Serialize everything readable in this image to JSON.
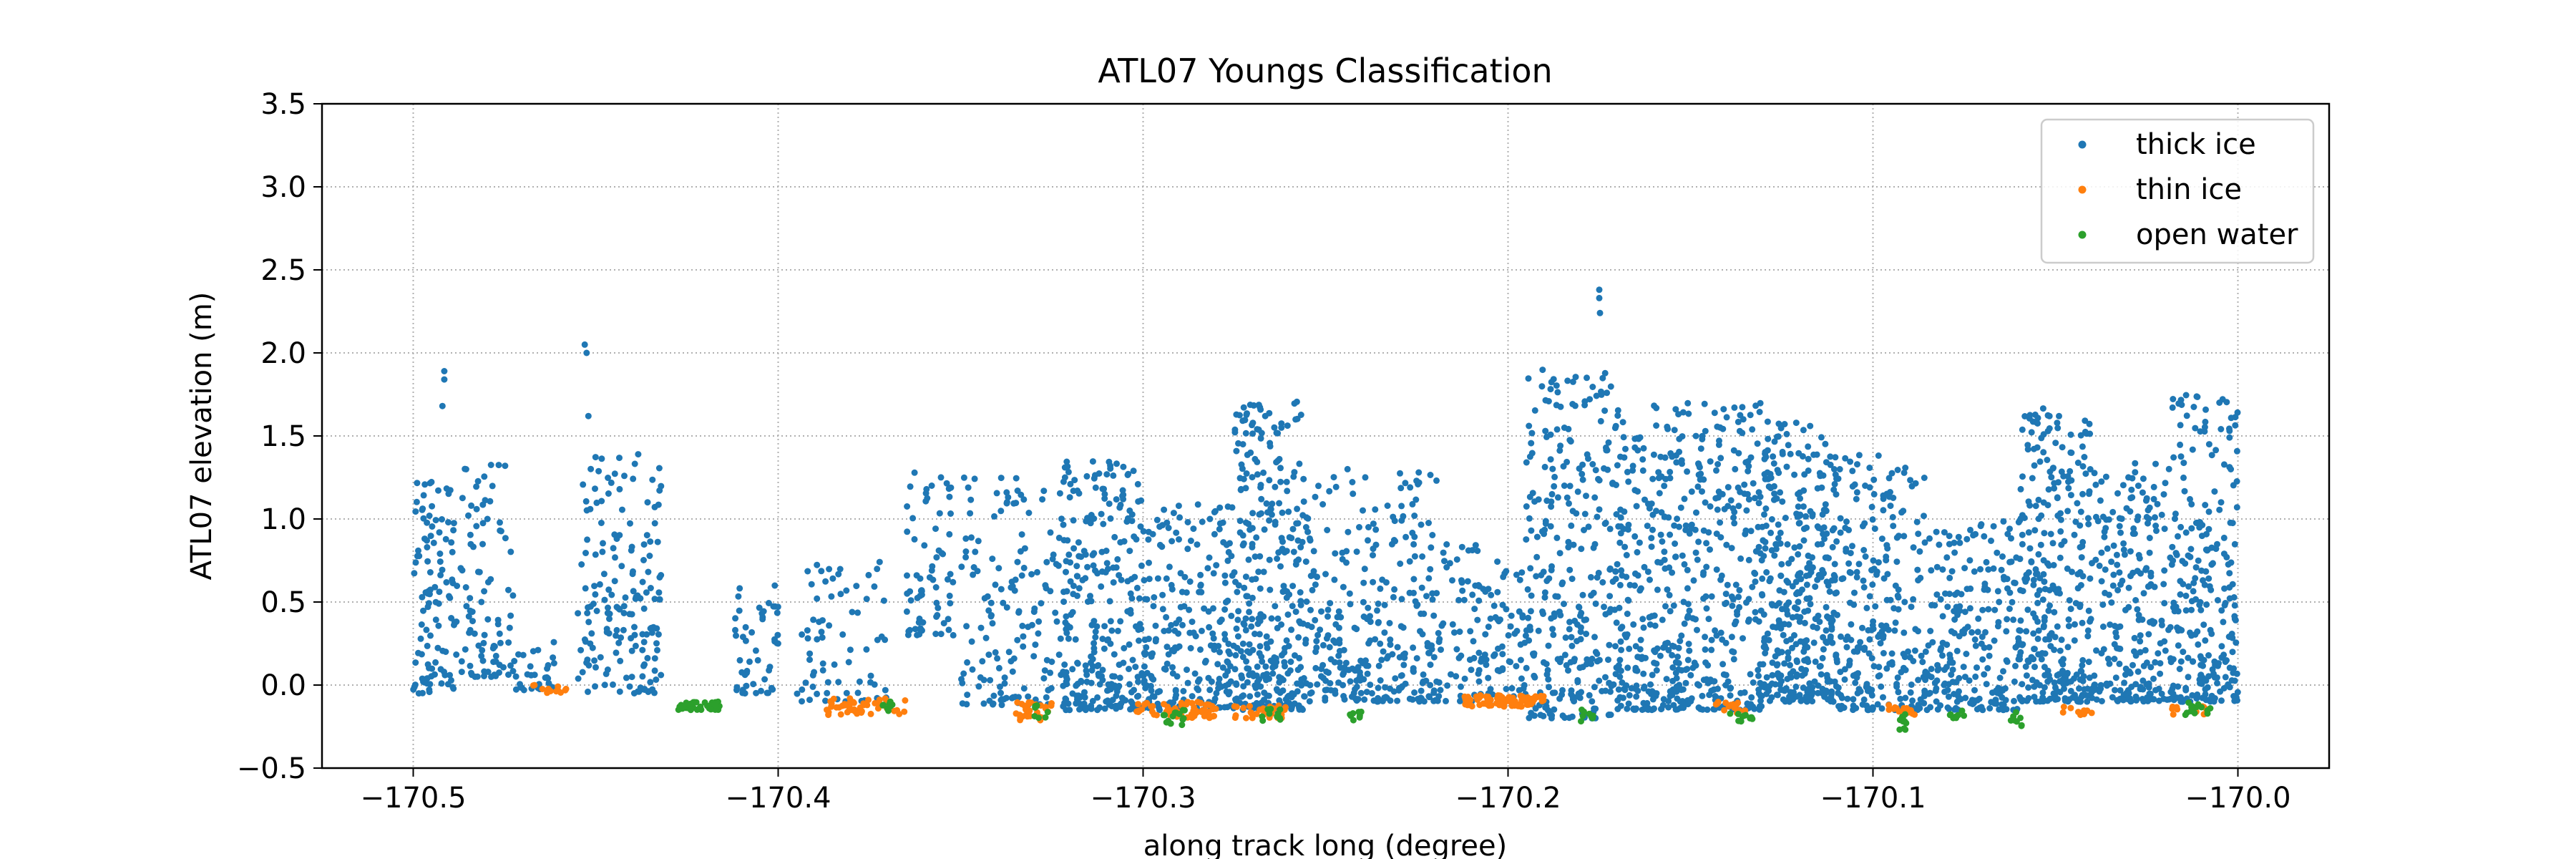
{
  "chart_data": {
    "type": "scatter",
    "title": "ATL07 Youngs Classification",
    "xlabel": "along track long (degree)",
    "ylabel": "ATL07 elevation (m)",
    "xlim": [
      -170.525,
      -169.975
    ],
    "ylim": [
      -0.5,
      3.5
    ],
    "xticks": [
      -170.5,
      -170.4,
      -170.3,
      -170.2,
      -170.1,
      -170.0
    ],
    "xtick_labels": [
      "−170.5",
      "−170.4",
      "−170.3",
      "−170.2",
      "−170.1",
      "−170.0"
    ],
    "yticks": [
      -0.5,
      0.0,
      0.5,
      1.0,
      1.5,
      2.0,
      2.5,
      3.0,
      3.5
    ],
    "ytick_labels": [
      "−0.5",
      "0.0",
      "0.5",
      "1.0",
      "1.5",
      "2.0",
      "2.5",
      "3.0",
      "3.5"
    ],
    "grid": true,
    "legend_position": "top-right",
    "series": [
      {
        "name": "thick ice",
        "color": "#1f77b4",
        "ice_groups": [
          {
            "x0": -170.5,
            "x1": -170.488,
            "lo": -0.05,
            "hi": 1.25,
            "n": 110
          },
          {
            "x0": -170.487,
            "x1": -170.472,
            "lo": 0.05,
            "hi": 1.35,
            "n": 90
          },
          {
            "x0": -170.472,
            "x1": -170.46,
            "lo": -0.03,
            "hi": 0.3,
            "n": 30
          },
          {
            "x0": -170.455,
            "x1": -170.432,
            "lo": -0.05,
            "hi": 1.4,
            "n": 170
          },
          {
            "x0": -170.412,
            "x1": -170.4,
            "lo": -0.05,
            "hi": 0.6,
            "n": 50
          },
          {
            "x0": -170.395,
            "x1": -170.37,
            "lo": -0.1,
            "hi": 0.75,
            "n": 70
          },
          {
            "x0": -170.365,
            "x1": -170.352,
            "lo": 0.3,
            "hi": 1.3,
            "n": 70
          },
          {
            "x0": -170.35,
            "x1": -170.322,
            "lo": -0.12,
            "hi": 1.25,
            "n": 150
          },
          {
            "x0": -170.322,
            "x1": -170.298,
            "lo": -0.15,
            "hi": 1.35,
            "n": 300
          },
          {
            "x0": -170.298,
            "x1": -170.275,
            "lo": -0.15,
            "hi": 1.1,
            "n": 200
          },
          {
            "x0": -170.275,
            "x1": -170.255,
            "lo": -0.15,
            "hi": 1.72,
            "n": 330
          },
          {
            "x0": -170.255,
            "x1": -170.218,
            "lo": -0.1,
            "hi": 1.3,
            "n": 300
          },
          {
            "x0": -170.218,
            "x1": -170.195,
            "lo": -0.1,
            "hi": 0.9,
            "n": 120
          },
          {
            "x0": -170.195,
            "x1": -170.17,
            "lo": -0.2,
            "hi": 1.9,
            "n": 300
          },
          {
            "x0": -170.17,
            "x1": -170.13,
            "lo": -0.15,
            "hi": 1.7,
            "n": 520
          },
          {
            "x0": -170.13,
            "x1": -170.11,
            "lo": -0.1,
            "hi": 1.62,
            "n": 360
          },
          {
            "x0": -170.11,
            "x1": -170.085,
            "lo": -0.15,
            "hi": 1.4,
            "n": 250
          },
          {
            "x0": -170.085,
            "x1": -170.06,
            "lo": -0.15,
            "hi": 1.0,
            "n": 220
          },
          {
            "x0": -170.06,
            "x1": -170.04,
            "lo": -0.1,
            "hi": 1.7,
            "n": 300
          },
          {
            "x0": -170.04,
            "x1": -170.018,
            "lo": -0.1,
            "hi": 1.35,
            "n": 230
          },
          {
            "x0": -170.018,
            "x1": -170.0,
            "lo": -0.1,
            "hi": 1.75,
            "n": 240
          }
        ],
        "outliers": [
          {
            "x": -170.4915,
            "y": 1.89
          },
          {
            "x": -170.4915,
            "y": 1.84
          },
          {
            "x": -170.492,
            "y": 1.68
          },
          {
            "x": -170.453,
            "y": 2.05
          },
          {
            "x": -170.4525,
            "y": 2.0
          },
          {
            "x": -170.452,
            "y": 1.62
          },
          {
            "x": -170.175,
            "y": 2.38
          },
          {
            "x": -170.175,
            "y": 2.33
          },
          {
            "x": -170.1748,
            "y": 2.24
          }
        ]
      },
      {
        "name": "thin ice",
        "color": "#ff7f0e",
        "groups": [
          {
            "x0": -170.468,
            "x1": -170.458,
            "lo": -0.05,
            "hi": 0.0,
            "n": 12
          },
          {
            "x0": -170.388,
            "x1": -170.365,
            "lo": -0.18,
            "hi": -0.08,
            "n": 50
          },
          {
            "x0": -170.335,
            "x1": -170.325,
            "lo": -0.22,
            "hi": -0.1,
            "n": 30
          },
          {
            "x0": -170.302,
            "x1": -170.28,
            "lo": -0.2,
            "hi": -0.1,
            "n": 60
          },
          {
            "x0": -170.275,
            "x1": -170.26,
            "lo": -0.2,
            "hi": -0.12,
            "n": 30
          },
          {
            "x0": -170.212,
            "x1": -170.19,
            "lo": -0.13,
            "hi": -0.06,
            "n": 90
          },
          {
            "x0": -170.143,
            "x1": -170.135,
            "lo": -0.18,
            "hi": -0.1,
            "n": 15
          },
          {
            "x0": -170.098,
            "x1": -170.088,
            "lo": -0.18,
            "hi": -0.12,
            "n": 15
          },
          {
            "x0": -170.048,
            "x1": -170.04,
            "lo": -0.18,
            "hi": -0.12,
            "n": 10
          },
          {
            "x0": -170.018,
            "x1": -170.008,
            "lo": -0.18,
            "hi": -0.12,
            "n": 10
          }
        ]
      },
      {
        "name": "open water",
        "color": "#2ca02c",
        "groups": [
          {
            "x0": -170.428,
            "x1": -170.416,
            "lo": -0.15,
            "hi": -0.1,
            "n": 40
          },
          {
            "x0": -170.372,
            "x1": -170.368,
            "lo": -0.17,
            "hi": -0.1,
            "n": 8
          },
          {
            "x0": -170.33,
            "x1": -170.326,
            "lo": -0.2,
            "hi": -0.12,
            "n": 8
          },
          {
            "x0": -170.295,
            "x1": -170.288,
            "lo": -0.24,
            "hi": -0.15,
            "n": 15
          },
          {
            "x0": -170.268,
            "x1": -170.262,
            "lo": -0.22,
            "hi": -0.14,
            "n": 10
          },
          {
            "x0": -170.244,
            "x1": -170.24,
            "lo": -0.22,
            "hi": -0.14,
            "n": 8
          },
          {
            "x0": -170.18,
            "x1": -170.176,
            "lo": -0.22,
            "hi": -0.14,
            "n": 8
          },
          {
            "x0": -170.14,
            "x1": -170.133,
            "lo": -0.22,
            "hi": -0.14,
            "n": 12
          },
          {
            "x0": -170.095,
            "x1": -170.09,
            "lo": -0.27,
            "hi": -0.16,
            "n": 10
          },
          {
            "x0": -170.079,
            "x1": -170.075,
            "lo": -0.22,
            "hi": -0.14,
            "n": 8
          },
          {
            "x0": -170.063,
            "x1": -170.059,
            "lo": -0.25,
            "hi": -0.14,
            "n": 8
          },
          {
            "x0": -170.015,
            "x1": -170.004,
            "lo": -0.18,
            "hi": -0.1,
            "n": 14
          }
        ]
      }
    ]
  }
}
